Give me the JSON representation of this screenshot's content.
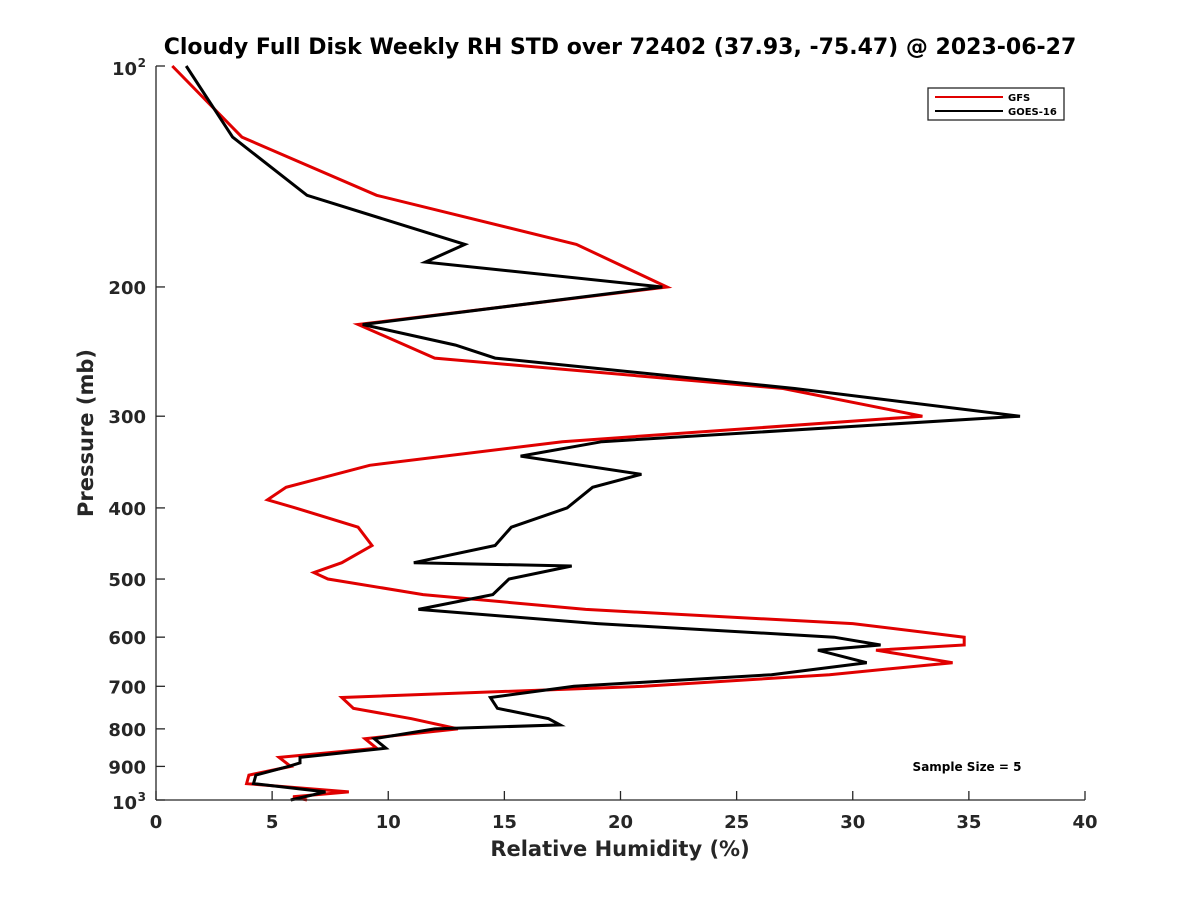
{
  "chart_data": {
    "type": "line",
    "title": "Cloudy Full Disk Weekly RH STD over 72402 (37.93, -75.47) @ 2023-06-27",
    "xlabel": "Relative Humidity (%)",
    "ylabel": "Pressure (mb)",
    "xlim": [
      0,
      40
    ],
    "ylim": [
      100,
      1000
    ],
    "y_scale": "log",
    "y_reversed": true,
    "grid": false,
    "legend_position": "top-right",
    "x_ticks": [
      {
        "value": 0,
        "label": "0"
      },
      {
        "value": 5,
        "label": "5"
      },
      {
        "value": 10,
        "label": "10"
      },
      {
        "value": 15,
        "label": "15"
      },
      {
        "value": 20,
        "label": "20"
      },
      {
        "value": 25,
        "label": "25"
      },
      {
        "value": 30,
        "label": "30"
      },
      {
        "value": 35,
        "label": "35"
      },
      {
        "value": 40,
        "label": "40"
      }
    ],
    "y_ticks": [
      {
        "value": 100,
        "base": "10",
        "exp": "2"
      },
      {
        "value": 200,
        "label": "200"
      },
      {
        "value": 300,
        "label": "300"
      },
      {
        "value": 400,
        "label": "400"
      },
      {
        "value": 500,
        "label": "500"
      },
      {
        "value": 600,
        "label": "600"
      },
      {
        "value": 700,
        "label": "700"
      },
      {
        "value": 800,
        "label": "800"
      },
      {
        "value": 900,
        "label": "900"
      },
      {
        "value": 1000,
        "base": "10",
        "exp": "3"
      }
    ],
    "series": [
      {
        "name": "GFS",
        "color": "#e00000",
        "points": [
          [
            0.7,
            100
          ],
          [
            3.7,
            125
          ],
          [
            9.5,
            150
          ],
          [
            18.1,
            175
          ],
          [
            22.0,
            200
          ],
          [
            8.7,
            225
          ],
          [
            12.0,
            250
          ],
          [
            27.0,
            275
          ],
          [
            33.0,
            300
          ],
          [
            17.5,
            325
          ],
          [
            9.2,
            350
          ],
          [
            5.6,
            375
          ],
          [
            4.8,
            390
          ],
          [
            6.0,
            400
          ],
          [
            8.7,
            425
          ],
          [
            9.3,
            450
          ],
          [
            8.0,
            475
          ],
          [
            6.8,
            490
          ],
          [
            7.4,
            500
          ],
          [
            11.5,
            525
          ],
          [
            18.5,
            550
          ],
          [
            30.0,
            575
          ],
          [
            34.8,
            600
          ],
          [
            34.8,
            615
          ],
          [
            31.0,
            625
          ],
          [
            34.3,
            650
          ],
          [
            29.0,
            675
          ],
          [
            21.0,
            700
          ],
          [
            8.0,
            725
          ],
          [
            8.5,
            750
          ],
          [
            11.0,
            775
          ],
          [
            13.0,
            800
          ],
          [
            9.0,
            825
          ],
          [
            9.5,
            850
          ],
          [
            5.3,
            875
          ],
          [
            5.8,
            900
          ],
          [
            4.0,
            925
          ],
          [
            3.9,
            950
          ],
          [
            8.3,
            975
          ],
          [
            5.9,
            990
          ],
          [
            6.5,
            1000
          ]
        ]
      },
      {
        "name": "GOES-16",
        "color": "#000000",
        "points": [
          [
            1.3,
            100
          ],
          [
            3.3,
            125
          ],
          [
            6.5,
            150
          ],
          [
            13.3,
            175
          ],
          [
            11.6,
            185
          ],
          [
            21.8,
            200
          ],
          [
            8.9,
            225
          ],
          [
            12.9,
            240
          ],
          [
            14.6,
            250
          ],
          [
            27.5,
            275
          ],
          [
            37.2,
            300
          ],
          [
            19.2,
            325
          ],
          [
            15.7,
            340
          ],
          [
            20.9,
            360
          ],
          [
            18.8,
            375
          ],
          [
            17.7,
            400
          ],
          [
            15.3,
            425
          ],
          [
            14.6,
            450
          ],
          [
            11.1,
            475
          ],
          [
            17.9,
            480
          ],
          [
            15.2,
            500
          ],
          [
            14.5,
            525
          ],
          [
            11.3,
            550
          ],
          [
            19.0,
            575
          ],
          [
            29.2,
            600
          ],
          [
            31.2,
            615
          ],
          [
            28.5,
            625
          ],
          [
            30.6,
            650
          ],
          [
            26.5,
            675
          ],
          [
            18.0,
            700
          ],
          [
            14.4,
            725
          ],
          [
            14.7,
            750
          ],
          [
            16.9,
            775
          ],
          [
            17.4,
            790
          ],
          [
            12.0,
            800
          ],
          [
            9.4,
            825
          ],
          [
            9.9,
            850
          ],
          [
            6.2,
            875
          ],
          [
            6.2,
            890
          ],
          [
            5.7,
            900
          ],
          [
            4.3,
            925
          ],
          [
            4.2,
            950
          ],
          [
            7.3,
            975
          ],
          [
            5.8,
            1000
          ]
        ]
      }
    ],
    "annotations": [
      {
        "text": "Sample Size = 5"
      }
    ]
  }
}
